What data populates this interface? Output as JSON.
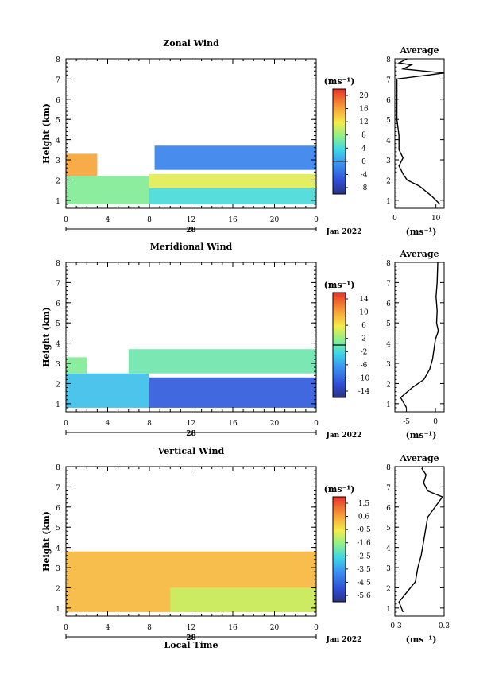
{
  "chart_data": [
    {
      "type": "heatmap",
      "title": "Zonal Wind",
      "xlabel": "",
      "ylabel": "Height (km)",
      "xticks": [
        "0",
        "4",
        "8",
        "12",
        "16",
        "20",
        "0"
      ],
      "yticks": [
        "1",
        "2",
        "3",
        "4",
        "5",
        "6",
        "7",
        "8"
      ],
      "xlim": [
        0,
        24
      ],
      "ylim": [
        0.6,
        8
      ],
      "date_mid": "28",
      "date_label": "Jan 2022",
      "colorbar": {
        "unit": "(ms⁻¹)",
        "tick_labels": [
          "20",
          "16",
          "12",
          "8",
          "4",
          "0",
          "-4",
          "-8"
        ],
        "range": [
          -10,
          22
        ],
        "zero_line": 0
      },
      "cells": [
        {
          "x0": 0,
          "x1": 8,
          "y0": 0.8,
          "y1": 2.2,
          "v": 7
        },
        {
          "x0": 0,
          "x1": 3,
          "y0": 2.2,
          "y1": 3.3,
          "v": 16
        },
        {
          "x0": 8,
          "x1": 24,
          "y0": 0.8,
          "y1": 1.6,
          "v": 4
        },
        {
          "x0": 8,
          "x1": 24,
          "y0": 1.6,
          "y1": 2.3,
          "v": 11
        },
        {
          "x0": 8.5,
          "x1": 24,
          "y0": 2.5,
          "y1": 3.7,
          "v": -2
        }
      ],
      "average": {
        "title": "Average",
        "xlabel": "(ms⁻¹)",
        "xticks": [
          "0",
          "10"
        ],
        "xlim": [
          0,
          12
        ],
        "yticks": [
          "1",
          "2",
          "3",
          "4",
          "5",
          "6",
          "7",
          "8"
        ],
        "x": [
          11,
          9,
          6,
          3,
          2,
          1,
          2,
          1,
          1,
          0.5,
          0.5,
          0.5,
          12,
          2,
          4,
          1,
          3
        ],
        "y": [
          0.8,
          1.2,
          1.7,
          2.0,
          2.3,
          2.7,
          3.1,
          3.5,
          4.2,
          5.0,
          6.0,
          7.0,
          7.3,
          7.5,
          7.7,
          7.8,
          8.0
        ]
      }
    },
    {
      "type": "heatmap",
      "title": "Meridional Wind",
      "xlabel": "",
      "ylabel": "Height (km)",
      "xticks": [
        "0",
        "4",
        "8",
        "12",
        "16",
        "20",
        "0"
      ],
      "yticks": [
        "1",
        "2",
        "3",
        "4",
        "5",
        "6",
        "7",
        "8"
      ],
      "xlim": [
        0,
        24
      ],
      "ylim": [
        0.6,
        8
      ],
      "date_mid": "28",
      "date_label": "Jan 2022",
      "colorbar": {
        "unit": "(ms⁻¹)",
        "tick_labels": [
          "14",
          "10",
          "6",
          "2",
          "-2",
          "-6",
          "-10",
          "-14"
        ],
        "range": [
          -16,
          16
        ],
        "zero_line": 0
      },
      "cells": [
        {
          "x0": 0,
          "x1": 8,
          "y0": 0.8,
          "y1": 2.5,
          "v": -4
        },
        {
          "x0": 0,
          "x1": 2,
          "y0": 2.5,
          "y1": 3.3,
          "v": 1
        },
        {
          "x0": 8,
          "x1": 24,
          "y0": 0.8,
          "y1": 2.3,
          "v": -11
        },
        {
          "x0": 6,
          "x1": 24,
          "y0": 2.5,
          "y1": 3.7,
          "v": 0
        }
      ],
      "average": {
        "title": "Average",
        "xlabel": "(ms⁻¹)",
        "xticks": [
          "-5",
          "0"
        ],
        "xlim": [
          -7,
          1.5
        ],
        "yticks": [
          "1",
          "2",
          "3",
          "4",
          "5",
          "6",
          "7",
          "8"
        ],
        "x": [
          -5,
          -6,
          -4,
          -2,
          -1,
          -0.5,
          0,
          0.5,
          0.2,
          0.3,
          0.1,
          0.3,
          0.4
        ],
        "y": [
          0.8,
          1.3,
          1.8,
          2.2,
          2.7,
          3.2,
          4.2,
          4.6,
          5.0,
          5.6,
          6.3,
          7.0,
          8.0
        ]
      }
    },
    {
      "type": "heatmap",
      "title": "Vertical Wind",
      "xlabel": "Local Time",
      "ylabel": "Height (km)",
      "xticks": [
        "0",
        "4",
        "8",
        "12",
        "16",
        "20",
        "0"
      ],
      "yticks": [
        "1",
        "2",
        "3",
        "4",
        "5",
        "6",
        "7",
        "8"
      ],
      "xlim": [
        0,
        24
      ],
      "ylim": [
        0.6,
        8
      ],
      "date_mid": "28",
      "date_label": "Jan 2022",
      "colorbar": {
        "unit": "(ms⁻¹)",
        "tick_labels": [
          "1.5",
          "0.6",
          "-0.5",
          "-1.6",
          "-2.5",
          "-3.5",
          "-4.5",
          "-5.6"
        ],
        "range": [
          -6,
          2
        ],
        "zero_line": null
      },
      "cells": [
        {
          "x0": 0,
          "x1": 24,
          "y0": 0.8,
          "y1": 3.8,
          "v": 0.2
        },
        {
          "x0": 10,
          "x1": 24,
          "y0": 0.8,
          "y1": 2.0,
          "v": -1.0
        }
      ],
      "average": {
        "title": "Average",
        "xlabel": "(ms⁻¹)",
        "xticks": [
          "-0.3",
          "0.3"
        ],
        "xlim": [
          -0.3,
          0.3
        ],
        "yticks": [
          "1",
          "2",
          "3",
          "4",
          "5",
          "6",
          "7",
          "8"
        ],
        "x": [
          -0.2,
          -0.25,
          -0.15,
          -0.05,
          -0.02,
          0.02,
          0.05,
          0.1,
          0.28,
          0.1,
          0.05,
          0.08,
          0.03,
          0.05
        ],
        "y": [
          0.8,
          1.3,
          1.8,
          2.3,
          3.0,
          3.6,
          4.3,
          5.5,
          6.5,
          6.8,
          7.2,
          7.6,
          7.9,
          8.0
        ]
      }
    }
  ]
}
